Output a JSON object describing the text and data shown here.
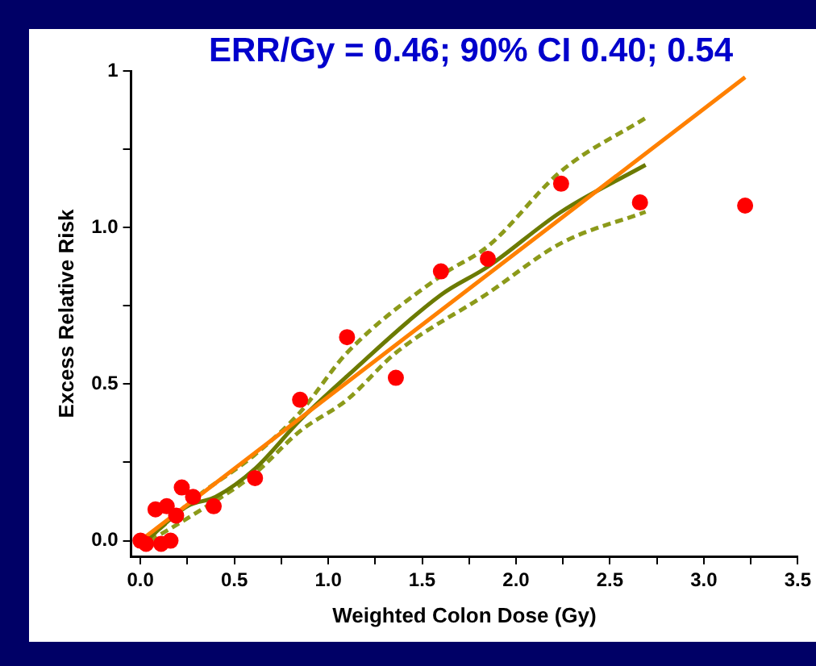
{
  "chart_data": {
    "type": "scatter",
    "title": "ERR/Gy = 0.46; 90% CI 0.40; 0.54",
    "xlabel": "Weighted Colon Dose (Gy)",
    "ylabel": "Excess Relative Risk",
    "xlim": [
      -0.05,
      3.5
    ],
    "ylim": [
      -0.05,
      1.5
    ],
    "xticks": [
      {
        "value": 0,
        "label": "0.0"
      },
      {
        "value": 0.25,
        "label": null
      },
      {
        "value": 0.5,
        "label": "0.5"
      },
      {
        "value": 0.75,
        "label": null
      },
      {
        "value": 1,
        "label": "1.0"
      },
      {
        "value": 1.25,
        "label": null
      },
      {
        "value": 1.5,
        "label": "1.5"
      },
      {
        "value": 1.75,
        "label": null
      },
      {
        "value": 2,
        "label": "2.0"
      },
      {
        "value": 2.25,
        "label": null
      },
      {
        "value": 2.5,
        "label": "2.5"
      },
      {
        "value": 2.75,
        "label": null
      },
      {
        "value": 3,
        "label": "3.0"
      },
      {
        "value": 3.25,
        "label": null
      },
      {
        "value": 3.5,
        "label": "3.5"
      }
    ],
    "yticks": [
      {
        "value": 0,
        "label": "0.0"
      },
      {
        "value": 0.25,
        "label": null
      },
      {
        "value": 0.5,
        "label": "0.5"
      },
      {
        "value": 0.75,
        "label": null
      },
      {
        "value": 1,
        "label": "1.0"
      },
      {
        "value": 1.25,
        "label": null
      },
      {
        "value": 1.5,
        "label": "1"
      }
    ],
    "grid": false,
    "legend": false,
    "marker": "circle",
    "series": [
      {
        "type": "scatter",
        "color": "#ff0000",
        "x": [
          0.0,
          0.03,
          0.11,
          0.16,
          0.08,
          0.14,
          0.19,
          0.22,
          0.28,
          0.39,
          0.61,
          0.85,
          1.1,
          1.36,
          1.6,
          1.85,
          2.24,
          2.66,
          3.22
        ],
        "values": [
          0.0,
          -0.01,
          -0.01,
          0.0,
          0.1,
          0.11,
          0.08,
          0.17,
          0.14,
          0.11,
          0.2,
          0.45,
          0.65,
          0.52,
          0.86,
          0.9,
          1.14,
          1.08,
          1.07
        ]
      },
      {
        "type": "line",
        "color": "#ff8000",
        "marker": "none",
        "x": [
          0.0,
          3.22
        ],
        "values": [
          0.0,
          1.48
        ]
      },
      {
        "type": "line",
        "color": "#6b7a00",
        "marker": "none",
        "x": [
          0.03,
          0.25,
          0.4,
          0.61,
          0.85,
          1.1,
          1.6,
          1.85,
          2.24,
          2.69
        ],
        "values": [
          0.0,
          0.11,
          0.14,
          0.23,
          0.385,
          0.525,
          0.785,
          0.875,
          1.05,
          1.2
        ]
      },
      {
        "type": "line",
        "color": "#8c9a1a",
        "marker": "none",
        "line_style": "dashed",
        "x": [
          0.05,
          0.3,
          0.6,
          0.85,
          1.1,
          1.61,
          1.85,
          2.24,
          2.69
        ],
        "values": [
          0.01,
          0.14,
          0.27,
          0.41,
          0.6,
          0.85,
          0.94,
          1.18,
          1.35
        ]
      },
      {
        "type": "line",
        "color": "#8c9a1a",
        "marker": "none",
        "line_style": "dashed",
        "x": [
          0.05,
          0.3,
          0.6,
          0.85,
          1.1,
          1.36,
          1.85,
          2.24,
          2.69
        ],
        "values": [
          0.0,
          0.09,
          0.21,
          0.35,
          0.45,
          0.6,
          0.79,
          0.95,
          1.05
        ]
      }
    ]
  }
}
